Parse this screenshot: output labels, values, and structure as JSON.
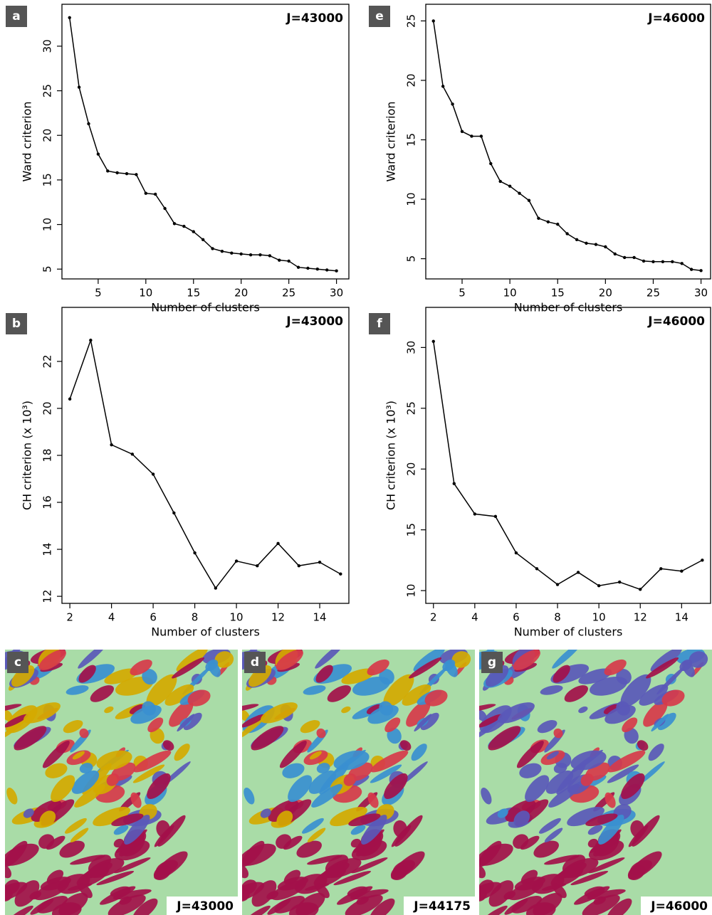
{
  "chart_data": [
    {
      "type": "line",
      "panel": "a",
      "annotation": "J=43000",
      "xlabel": "Number of clusters",
      "ylabel": "Ward criterion",
      "x": [
        2,
        3,
        4,
        5,
        6,
        7,
        8,
        9,
        10,
        11,
        12,
        13,
        14,
        15,
        16,
        17,
        18,
        19,
        20,
        21,
        22,
        23,
        24,
        25,
        26,
        27,
        28,
        29,
        30
      ],
      "values": [
        33.2,
        25.4,
        21.3,
        17.9,
        16.0,
        15.8,
        15.7,
        15.6,
        13.5,
        13.4,
        11.8,
        10.1,
        9.8,
        9.2,
        8.3,
        7.3,
        7.0,
        6.8,
        6.7,
        6.6,
        6.6,
        6.5,
        6.0,
        5.9,
        5.2,
        5.1,
        5.0,
        4.9,
        4.8
      ],
      "color": "#000000",
      "xlim": [
        1.2,
        31.3
      ],
      "ylim": [
        3.9,
        34.7
      ],
      "xticks": [
        5,
        10,
        15,
        20,
        25,
        30
      ],
      "yticks": [
        5,
        10,
        15,
        20,
        25,
        30
      ]
    },
    {
      "type": "line",
      "panel": "e",
      "annotation": "J=46000",
      "xlabel": "Number of clusters",
      "ylabel": "Ward criterion",
      "x": [
        2,
        3,
        4,
        5,
        6,
        7,
        8,
        9,
        10,
        11,
        12,
        13,
        14,
        15,
        16,
        17,
        18,
        19,
        20,
        21,
        22,
        23,
        24,
        25,
        26,
        27,
        28,
        29,
        30
      ],
      "values": [
        25.0,
        19.5,
        18.0,
        15.7,
        15.3,
        15.3,
        13.0,
        11.5,
        11.1,
        10.5,
        9.9,
        8.4,
        8.1,
        7.9,
        7.1,
        6.6,
        6.3,
        6.2,
        6.0,
        5.4,
        5.1,
        5.1,
        4.8,
        4.75,
        4.75,
        4.75,
        4.6,
        4.1,
        4.0
      ],
      "color": "#000000",
      "xlim": [
        1.2,
        31.0
      ],
      "ylim": [
        3.3,
        26.4
      ],
      "xticks": [
        5,
        10,
        15,
        20,
        25,
        30
      ],
      "yticks": [
        5,
        10,
        15,
        20,
        25
      ]
    },
    {
      "type": "line",
      "panel": "b",
      "annotation": "J=43000",
      "xlabel": "Number of clusters",
      "ylabel": "CH criterion (x 10³)",
      "x": [
        2,
        3,
        4,
        5,
        6,
        7,
        8,
        9,
        10,
        11,
        12,
        13,
        14,
        15
      ],
      "values": [
        20.4,
        22.9,
        18.45,
        18.05,
        17.2,
        15.55,
        13.85,
        12.35,
        13.5,
        13.3,
        14.25,
        13.3,
        13.45,
        12.95
      ],
      "color": "#000000",
      "xlim": [
        1.62,
        15.4
      ],
      "ylim": [
        11.7,
        24.3
      ],
      "xticks": [
        2,
        4,
        6,
        8,
        10,
        12,
        14
      ],
      "yticks": [
        12,
        14,
        16,
        18,
        20,
        22
      ]
    },
    {
      "type": "line",
      "panel": "f",
      "annotation": "J=46000",
      "xlabel": "Number of clusters",
      "ylabel": "CH criterion (x 10³)",
      "x": [
        2,
        3,
        4,
        5,
        6,
        7,
        8,
        9,
        10,
        11,
        12,
        13,
        14,
        15
      ],
      "values": [
        30.5,
        18.8,
        16.3,
        16.1,
        13.1,
        11.8,
        10.5,
        11.5,
        10.4,
        10.7,
        10.1,
        11.8,
        11.6,
        12.5
      ],
      "color": "#000000",
      "xlim": [
        1.63,
        15.4
      ],
      "ylim": [
        8.95,
        33.3
      ],
      "xticks": [
        2,
        4,
        6,
        8,
        10,
        12,
        14
      ],
      "yticks": [
        10,
        15,
        20,
        25,
        30
      ]
    }
  ],
  "images": [
    {
      "panel": "c",
      "annotation": "J=43000"
    },
    {
      "panel": "d",
      "annotation": "J=44175"
    },
    {
      "panel": "g",
      "annotation": "J=46000"
    }
  ]
}
